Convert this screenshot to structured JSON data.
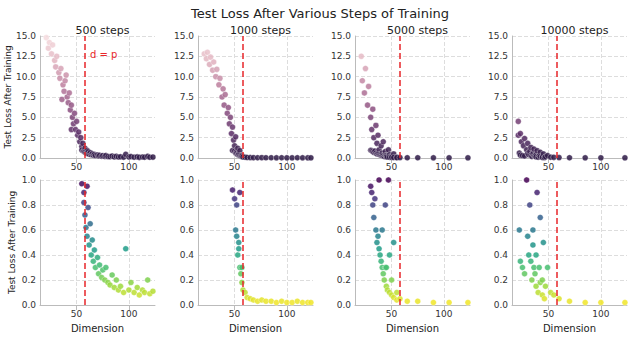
{
  "chart_data": {
    "type": "scatter",
    "title": "Test Loss After Various Steps of Training",
    "x_label": "Dimension",
    "y_label": "Test Loss After Training",
    "xlim": [
      15,
      125
    ],
    "xticks": [
      50,
      100
    ],
    "grid": true,
    "reference_line": {
      "x": 58,
      "color": "#e8262a",
      "line_style": "dashed"
    },
    "rows": [
      {
        "ylim": [
          0,
          15
        ],
        "yticks": [
          {
            "value": 0,
            "label": "0.0"
          },
          {
            "value": 2.5,
            "label": "2.5"
          },
          {
            "value": 5,
            "label": "5.0"
          },
          {
            "value": 7.5,
            "label": "7.5"
          },
          {
            "value": 10,
            "label": "10.0"
          },
          {
            "value": 12.5,
            "label": "12.5"
          },
          {
            "value": 15,
            "label": "15.0"
          }
        ]
      },
      {
        "ylim": [
          0,
          1
        ],
        "yticks": [
          {
            "value": 0,
            "label": "0.0"
          },
          {
            "value": 0.2,
            "label": "0.2"
          },
          {
            "value": 0.4,
            "label": "0.4"
          },
          {
            "value": 0.6,
            "label": "0.6"
          },
          {
            "value": 0.8,
            "label": "0.8"
          },
          {
            "value": 1,
            "label": "1.0"
          }
        ]
      }
    ],
    "panels": [
      {
        "title": "500 steps",
        "annotation": "d = p",
        "x": [
          21,
          23,
          24,
          26,
          27,
          29,
          30,
          31,
          33,
          34,
          35,
          36,
          37,
          38,
          39,
          40,
          41,
          42,
          43,
          44,
          45,
          45,
          46,
          47,
          48,
          49,
          50,
          51,
          52,
          53,
          54,
          55,
          55,
          56,
          57,
          57,
          58,
          58,
          59,
          60,
          60,
          61,
          62,
          63,
          64,
          65,
          66,
          67,
          68,
          70,
          71,
          72,
          74,
          75,
          77,
          78,
          80,
          82,
          84,
          86,
          88,
          90,
          92,
          95,
          97,
          100,
          102,
          105,
          108,
          110,
          113,
          115,
          118,
          120,
          123
        ],
        "values": [
          14.8,
          13.5,
          14.2,
          12.8,
          13.9,
          12.0,
          11.2,
          12.5,
          10.5,
          9.8,
          11.0,
          7.2,
          9.0,
          8.2,
          9.5,
          10.2,
          7.5,
          6.8,
          8.0,
          5.9,
          6.5,
          3.5,
          5.0,
          4.2,
          5.5,
          3.5,
          4.5,
          2.8,
          3.2,
          2.0,
          2.5,
          1.4,
          0.97,
          1.8,
          0.9,
          0.82,
          1.2,
          0.72,
          0.62,
          0.95,
          0.55,
          0.78,
          0.48,
          0.65,
          0.4,
          0.52,
          0.35,
          0.44,
          0.3,
          0.38,
          0.25,
          0.32,
          0.22,
          0.28,
          0.2,
          0.3,
          0.18,
          0.16,
          0.24,
          0.14,
          0.2,
          0.12,
          0.15,
          0.1,
          0.45,
          0.12,
          0.18,
          0.1,
          0.14,
          0.08,
          0.12,
          0.1,
          0.2,
          0.09,
          0.11
        ]
      },
      {
        "title": "1000 steps",
        "x": [
          21,
          23,
          24,
          26,
          27,
          29,
          30,
          32,
          33,
          35,
          36,
          38,
          39,
          40,
          41,
          43,
          44,
          45,
          46,
          47,
          48,
          48,
          49,
          50,
          50,
          51,
          51,
          52,
          52,
          53,
          53,
          54,
          54,
          55,
          55,
          56,
          57,
          57,
          58,
          60,
          62,
          65,
          68,
          72,
          76,
          80,
          85,
          90,
          95,
          100,
          105,
          110,
          115,
          120,
          123
        ],
        "values": [
          12.8,
          12.2,
          13.0,
          11.5,
          12.4,
          10.8,
          11.8,
          10.0,
          10.9,
          9.0,
          9.8,
          7.5,
          8.5,
          6.5,
          7.8,
          5.5,
          6.2,
          4.2,
          5.0,
          3.0,
          3.8,
          0.92,
          2.2,
          1.5,
          0.85,
          2.6,
          0.6,
          0.8,
          0.55,
          1.2,
          0.4,
          0.5,
          0.45,
          0.9,
          0.3,
          0.25,
          0.3,
          0.18,
          0.12,
          0.1,
          0.06,
          0.05,
          0.04,
          0.03,
          0.04,
          0.03,
          0.03,
          0.02,
          0.03,
          0.02,
          0.02,
          0.03,
          0.02,
          0.02,
          0.02
        ]
      },
      {
        "title": "5000 steps",
        "x": [
          21,
          22,
          24,
          25,
          27,
          28,
          30,
          30,
          31,
          31,
          32,
          32,
          33,
          33,
          34,
          35,
          35,
          36,
          36,
          37,
          37,
          38,
          38,
          39,
          40,
          40,
          41,
          41,
          42,
          42,
          43,
          44,
          44,
          45,
          45,
          46,
          47,
          48,
          48,
          50,
          50,
          52,
          52,
          55,
          55,
          58,
          65,
          75,
          90,
          105,
          123
        ],
        "values": [
          12.5,
          9.5,
          8.0,
          11.0,
          6.5,
          8.8,
          5.0,
          0.95,
          3.5,
          0.9,
          6.0,
          0.8,
          2.5,
          0.7,
          0.85,
          4.0,
          0.6,
          1.8,
          0.5,
          2.8,
          0.55,
          1.0,
          0.45,
          0.4,
          1.5,
          0.35,
          0.6,
          0.3,
          2.0,
          0.25,
          0.2,
          0.8,
          0.3,
          0.3,
          0.15,
          0.12,
          1.0,
          0.4,
          0.1,
          0.2,
          0.08,
          0.5,
          0.06,
          0.1,
          0.04,
          0.05,
          0.03,
          0.03,
          0.02,
          0.02,
          0.02
        ]
      },
      {
        "title": "10000 steps",
        "x": [
          21,
          21,
          22,
          23,
          23,
          24,
          25,
          26,
          27,
          27,
          29,
          30,
          30,
          31,
          32,
          33,
          33,
          34,
          35,
          35,
          36,
          36,
          37,
          38,
          38,
          39,
          40,
          41,
          42,
          42,
          44,
          44,
          45,
          46,
          47,
          49,
          52,
          55,
          60,
          70,
          85,
          100,
          123
        ],
        "values": [
          4.5,
          2.8,
          0.6,
          3.0,
          0.35,
          2.0,
          0.3,
          1.5,
          2.4,
          0.25,
          1.0,
          1.8,
          0.55,
          0.4,
          0.8,
          1.3,
          0.35,
          0.2,
          0.6,
          0.48,
          1.1,
          0.3,
          0.25,
          0.4,
          0.15,
          0.9,
          0.1,
          0.3,
          0.7,
          0.18,
          0.2,
          0.08,
          0.5,
          0.05,
          0.15,
          0.3,
          0.1,
          0.08,
          0.05,
          0.03,
          0.02,
          0.02,
          0.02
        ]
      }
    ]
  }
}
